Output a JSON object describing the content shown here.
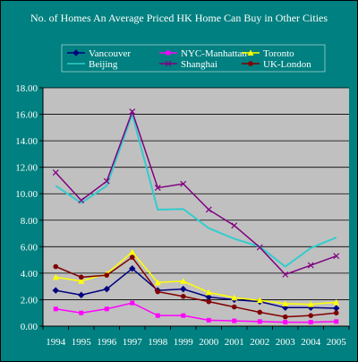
{
  "chart_data": {
    "type": "line",
    "title": "No. of Homes An Average Priced HK Home Can Buy in Other Cities",
    "xlabel": "",
    "ylabel": "",
    "x": [
      "1994",
      "1995",
      "1996",
      "1997",
      "1998",
      "1999",
      "2000",
      "2001",
      "2002",
      "2003",
      "2004",
      "2005"
    ],
    "ylim": [
      0,
      18
    ],
    "yticks": [
      "0.00",
      "2.00",
      "4.00",
      "6.00",
      "8.00",
      "10.00",
      "12.00",
      "14.00",
      "16.00",
      "18.00"
    ],
    "grid": "horizontal",
    "legend_position": "top",
    "series": [
      {
        "name": "Vancouver",
        "color": "#000080",
        "marker": "diamond",
        "values": [
          2.7,
          2.35,
          2.8,
          4.35,
          2.7,
          2.8,
          2.2,
          2.0,
          1.85,
          1.4,
          1.4,
          1.35
        ]
      },
      {
        "name": "NYC-Manhattan",
        "color": "#ff00ff",
        "marker": "square",
        "values": [
          1.3,
          1.0,
          1.3,
          1.75,
          0.8,
          0.8,
          0.45,
          0.4,
          0.35,
          0.3,
          0.3,
          0.35
        ]
      },
      {
        "name": "Toronto",
        "color": "#ffff00",
        "marker": "triangle",
        "values": [
          3.7,
          3.4,
          3.95,
          5.6,
          3.3,
          3.4,
          2.55,
          2.15,
          1.95,
          1.7,
          1.65,
          1.8
        ]
      },
      {
        "name": "Beijing",
        "color": "#33cccc",
        "marker": "none",
        "values": [
          10.6,
          9.3,
          10.6,
          16.0,
          8.8,
          8.85,
          7.4,
          6.6,
          6.0,
          4.5,
          5.9,
          6.7
        ]
      },
      {
        "name": "Shanghai",
        "color": "#800080",
        "marker": "x",
        "values": [
          11.6,
          9.5,
          10.95,
          16.2,
          10.45,
          10.75,
          8.8,
          7.6,
          5.95,
          3.9,
          4.6,
          5.3
        ]
      },
      {
        "name": "UK-London",
        "color": "#800000",
        "marker": "circle",
        "values": [
          4.5,
          3.7,
          3.85,
          5.2,
          2.6,
          2.25,
          1.85,
          1.45,
          1.05,
          0.7,
          0.8,
          1.0
        ]
      }
    ]
  }
}
